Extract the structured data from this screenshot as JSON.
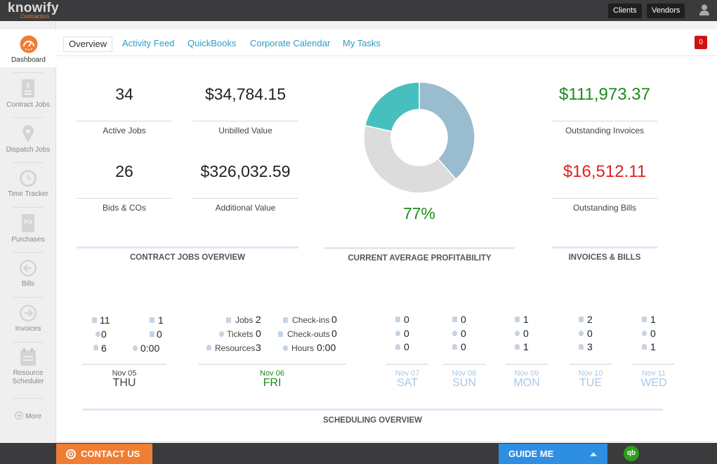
{
  "app": {
    "logo_text": "knowify",
    "logo_sub": "Contractors"
  },
  "topbar": {
    "clients_label": "Clients",
    "vendors_label": "Vendors"
  },
  "sidebar": {
    "items": [
      {
        "label": "Dashboard",
        "icon": "gauge-icon"
      },
      {
        "label": "Contract Jobs",
        "icon": "document-icon"
      },
      {
        "label": "Dispatch Jobs",
        "icon": "map-pin-icon"
      },
      {
        "label": "Time Tracker",
        "icon": "clock-icon"
      },
      {
        "label": "Purchases",
        "icon": "po-icon"
      },
      {
        "label": "Bills",
        "icon": "arrow-left-circle-icon"
      },
      {
        "label": "Invoices",
        "icon": "arrow-right-circle-icon"
      },
      {
        "label": "Resource",
        "label2": "Scheduler",
        "icon": "calendar-icon"
      },
      {
        "label": "More",
        "icon": "plus-circle-icon"
      }
    ]
  },
  "tabs": [
    {
      "label": "Overview"
    },
    {
      "label": "Activity Feed"
    },
    {
      "label": "QuickBooks"
    },
    {
      "label": "Corporate Calendar"
    },
    {
      "label": "My Tasks"
    }
  ],
  "notification_count": "0",
  "contract_overview": {
    "title": "CONTRACT JOBS OVERVIEW",
    "active_jobs": {
      "value": "34",
      "label": "Active Jobs"
    },
    "unbilled": {
      "value": "$34,784.15",
      "label": "Unbilled Value"
    },
    "bids": {
      "value": "26",
      "label": "Bids & COs"
    },
    "additional": {
      "value": "$326,032.59",
      "label": "Additional Value"
    }
  },
  "profitability": {
    "title": "CURRENT AVERAGE PROFITABILITY",
    "value": "77%",
    "donut": [
      {
        "fraction": 0.385,
        "color": "#99bccf"
      },
      {
        "fraction": 0.4,
        "color": "#dcdcdc"
      },
      {
        "fraction": 0.215,
        "color": "#47bfbf"
      }
    ]
  },
  "invoices_bills": {
    "title": "INVOICES & BILLS",
    "outstanding_invoices": {
      "value": "$111,973.37",
      "label": "Outstanding Invoices"
    },
    "outstanding_bills": {
      "value": "$16,512.11",
      "label": "Outstanding Bills"
    }
  },
  "scheduling": {
    "title": "SCHEDULING OVERVIEW",
    "days": [
      {
        "date": "Nov 05",
        "name": "THU",
        "jobs": "11",
        "tickets": "0",
        "resources": "6",
        "checkins": "1",
        "checkouts": "0",
        "hours": "0:00"
      },
      {
        "date": "Nov 06",
        "name": "FRI",
        "jobs": "2",
        "tickets": "0",
        "resources": "3",
        "checkins": "0",
        "checkouts": "0",
        "hours": "0:00",
        "labels": {
          "jobs": "Jobs",
          "tickets": "Tickets",
          "resources": "Resources",
          "checkins": "Check-ins",
          "checkouts": "Check-outs",
          "hours": "Hours"
        }
      },
      {
        "date": "Nov 07",
        "name": "SAT",
        "jobs": "0",
        "tickets": "0",
        "resources": "0"
      },
      {
        "date": "Nov 08",
        "name": "SUN",
        "jobs": "0",
        "tickets": "0",
        "resources": "0"
      },
      {
        "date": "Nov 09",
        "name": "MON",
        "jobs": "1",
        "tickets": "0",
        "resources": "1"
      },
      {
        "date": "Nov 10",
        "name": "TUE",
        "jobs": "2",
        "tickets": "0",
        "resources": "3"
      },
      {
        "date": "Nov 11",
        "name": "WED",
        "jobs": "1",
        "tickets": "0",
        "resources": "1"
      }
    ]
  },
  "footer": {
    "contact_label": "CONTACT US",
    "guide_label": "GUIDE ME",
    "qb_label": "qb"
  },
  "colors": {
    "green": "#1e8a1e",
    "red": "#e02020",
    "link_blue": "#2b9cc9",
    "future_day": "#a9c8e6"
  }
}
